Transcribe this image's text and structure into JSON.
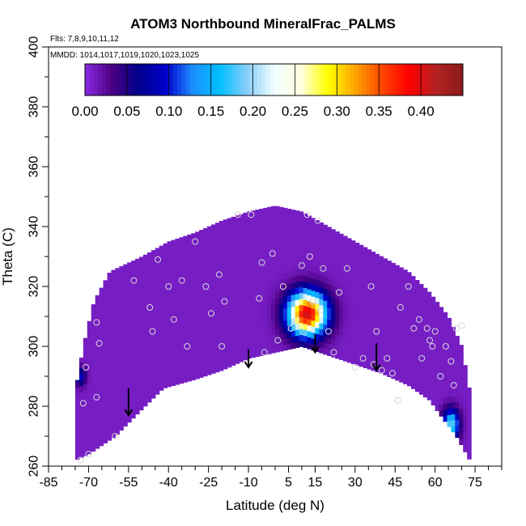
{
  "chart_data": {
    "type": "heatmap",
    "title": "ATOM3 Northbound MineralFrac_PALMS",
    "annotations": [
      "Flts: 7,8,9,10,11,12",
      "MMDD: 1014,1017,1019,1020,1023,1025"
    ],
    "xlabel": "Latitude (deg N)",
    "ylabel": "Theta (C)",
    "xlim": [
      -85,
      85
    ],
    "ylim": [
      260,
      400
    ],
    "x_ticks": [
      -85,
      -70,
      -55,
      -40,
      -25,
      -10,
      5,
      15,
      30,
      45,
      60,
      75
    ],
    "x_tick_labels": [
      "-85",
      "-70",
      "-55",
      "-40",
      "-25",
      "-10",
      "5",
      "15",
      "30",
      "45",
      "60",
      "75"
    ],
    "y_ticks": [
      260,
      280,
      300,
      320,
      340,
      360,
      380,
      400
    ],
    "y_tick_labels": [
      "260",
      "280",
      "300",
      "320",
      "340",
      "360",
      "380",
      "400"
    ],
    "colorbar": {
      "ticks": [
        0.0,
        0.05,
        0.1,
        0.15,
        0.2,
        0.25,
        0.3,
        0.35,
        0.4
      ],
      "tick_labels": [
        "0.00",
        "0.05",
        "0.10",
        "0.15",
        "0.20",
        "0.25",
        "0.30",
        "0.35",
        "0.40"
      ],
      "range": [
        0.0,
        0.45
      ],
      "colors": [
        "#8A2BE2",
        "#4B0082",
        "#00008B",
        "#0000CD",
        "#1E90FF",
        "#00BFFF",
        "#87CEFA",
        "#F0FFFF",
        "#FFFFE0",
        "#FFFF00",
        "#FFA500",
        "#FF4500",
        "#FF0000",
        "#B22222",
        "#8B1A1A"
      ]
    },
    "coverage_lower": [
      [
        -75,
        262
      ],
      [
        -70,
        264
      ],
      [
        -60,
        270
      ],
      [
        -50,
        279
      ],
      [
        -42,
        286
      ],
      [
        -30,
        289
      ],
      [
        -20,
        292
      ],
      [
        -10,
        296
      ],
      [
        0,
        298
      ],
      [
        10,
        300
      ],
      [
        20,
        297
      ],
      [
        30,
        294
      ],
      [
        40,
        291
      ],
      [
        50,
        287
      ],
      [
        58,
        282
      ],
      [
        62,
        277
      ],
      [
        68,
        270
      ],
      [
        73,
        262
      ]
    ],
    "coverage_upper": [
      [
        -75,
        285
      ],
      [
        -72,
        300
      ],
      [
        -68,
        315
      ],
      [
        -62,
        325
      ],
      [
        -50,
        330
      ],
      [
        -40,
        335
      ],
      [
        -30,
        338
      ],
      [
        -20,
        342
      ],
      [
        -10,
        345
      ],
      [
        0,
        347
      ],
      [
        10,
        345
      ],
      [
        20,
        340
      ],
      [
        30,
        335
      ],
      [
        40,
        330
      ],
      [
        50,
        325
      ],
      [
        58,
        318
      ],
      [
        65,
        310
      ],
      [
        70,
        300
      ],
      [
        73,
        285
      ]
    ],
    "hotspots": [
      {
        "lat": 12,
        "theta": 311,
        "value": 0.4,
        "spread_lat": 7,
        "spread_theta": 7
      },
      {
        "lat": 66,
        "theta": 274,
        "value": 0.18,
        "spread_lat": 3,
        "spread_theta": 5
      },
      {
        "lat": -73,
        "theta": 290,
        "value": 0.08,
        "spread_lat": 2,
        "spread_theta": 3
      }
    ],
    "background_value": 0.01,
    "sample_points": [
      [
        -73,
        262
      ],
      [
        -70,
        264
      ],
      [
        -72,
        281
      ],
      [
        -71,
        293
      ],
      [
        -67,
        283
      ],
      [
        -66,
        301
      ],
      [
        -67,
        308
      ],
      [
        -60,
        270
      ],
      [
        -53,
        322
      ],
      [
        -47,
        313
      ],
      [
        -46,
        305
      ],
      [
        -44,
        329
      ],
      [
        -40,
        320
      ],
      [
        -38,
        309
      ],
      [
        -35,
        322
      ],
      [
        -33,
        300
      ],
      [
        -30,
        335
      ],
      [
        -26,
        320
      ],
      [
        -24,
        311
      ],
      [
        -21,
        324
      ],
      [
        -20,
        300
      ],
      [
        -19,
        315
      ],
      [
        -14,
        344
      ],
      [
        -9,
        344
      ],
      [
        -6,
        316
      ],
      [
        -5,
        328
      ],
      [
        -4,
        298
      ],
      [
        -1,
        331
      ],
      [
        1,
        302
      ],
      [
        3,
        320
      ],
      [
        6,
        306
      ],
      [
        8,
        309
      ],
      [
        10,
        327
      ],
      [
        12,
        344
      ],
      [
        13,
        330
      ],
      [
        14,
        315
      ],
      [
        16,
        342
      ],
      [
        17,
        312
      ],
      [
        18,
        326
      ],
      [
        20,
        305
      ],
      [
        22,
        298
      ],
      [
        24,
        318
      ],
      [
        27,
        326
      ],
      [
        30,
        293
      ],
      [
        33,
        296
      ],
      [
        36,
        320
      ],
      [
        37,
        294
      ],
      [
        38,
        305
      ],
      [
        40,
        292
      ],
      [
        42,
        296
      ],
      [
        44,
        291
      ],
      [
        46,
        282
      ],
      [
        47,
        313
      ],
      [
        50,
        320
      ],
      [
        52,
        306
      ],
      [
        54,
        309
      ],
      [
        55,
        296
      ],
      [
        57,
        306
      ],
      [
        58,
        302
      ],
      [
        59,
        300
      ],
      [
        60,
        305
      ],
      [
        62,
        290
      ],
      [
        64,
        300
      ],
      [
        66,
        295
      ],
      [
        67,
        287
      ],
      [
        68,
        306
      ],
      [
        70,
        307
      ]
    ],
    "arrows_at_lat": [
      -55,
      -10,
      15,
      38
    ],
    "arrow_theta_top": [
      286,
      299,
      304,
      301
    ],
    "arrow_theta_bottom": [
      277,
      293,
      298,
      292
    ]
  }
}
